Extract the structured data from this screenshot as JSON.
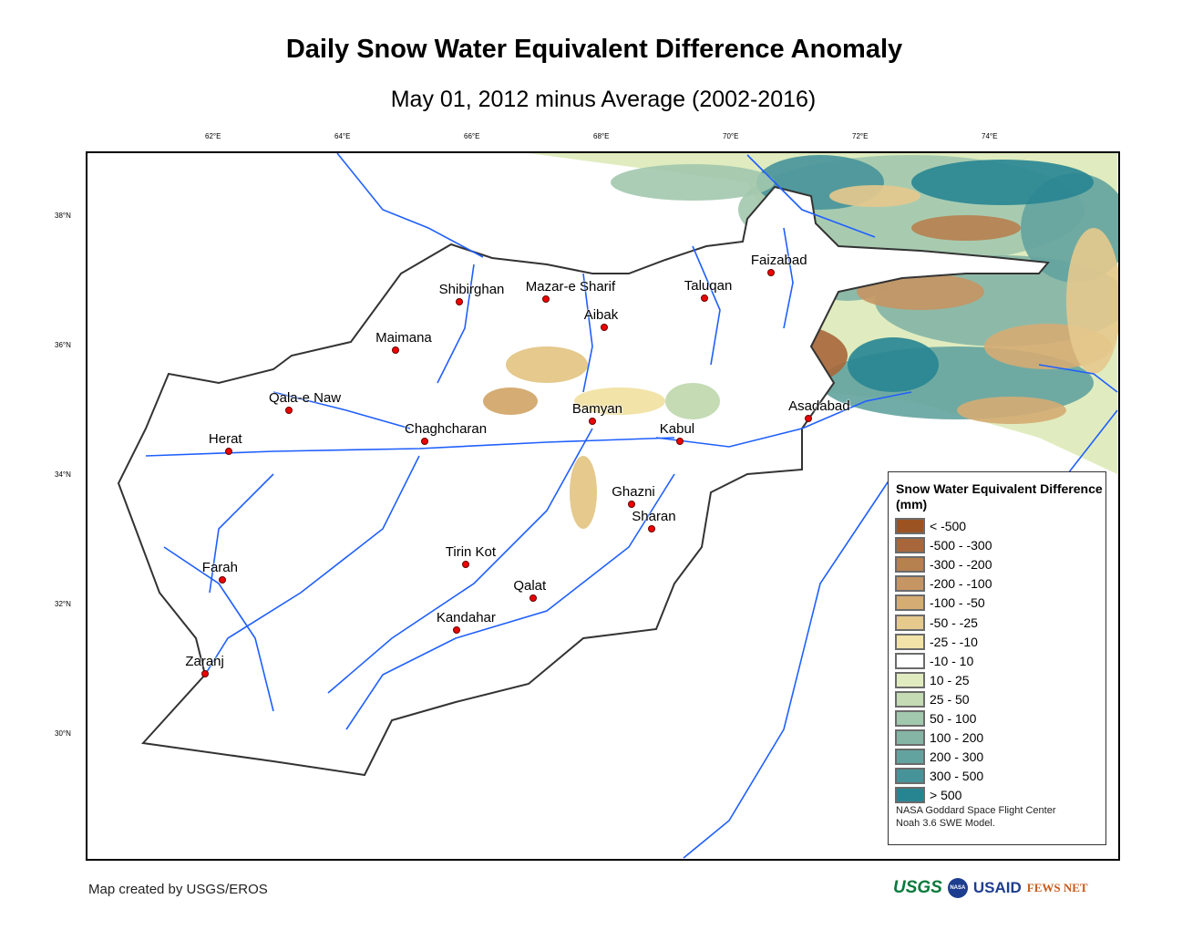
{
  "title": "Daily Snow Water Equivalent Difference Anomaly",
  "subtitle": "May 01, 2012 minus Average (2002-2016)",
  "map": {
    "lon_ticks": [
      "62°E",
      "64°E",
      "66°E",
      "68°E",
      "70°E",
      "72°E",
      "74°E"
    ],
    "lon_values": [
      62,
      64,
      66,
      68,
      70,
      72,
      74
    ],
    "lat_ticks": [
      "38°N",
      "36°N",
      "34°N",
      "32°N",
      "30°N"
    ],
    "lat_values": [
      38,
      36,
      34,
      32,
      30
    ],
    "cities": [
      {
        "name": "Faizabad",
        "lon": 70.59,
        "lat": 37.13
      },
      {
        "name": "Taluqan",
        "lon": 69.56,
        "lat": 36.73
      },
      {
        "name": "Shibirghan",
        "lon": 65.77,
        "lat": 36.68
      },
      {
        "name": "Mazar-e Sharif",
        "lon": 67.11,
        "lat": 36.72
      },
      {
        "name": "Aibak",
        "lon": 68.01,
        "lat": 36.28
      },
      {
        "name": "Maimana",
        "lon": 64.79,
        "lat": 35.93
      },
      {
        "name": "Qala-e Naw",
        "lon": 63.14,
        "lat": 35.0
      },
      {
        "name": "Herat",
        "lon": 62.21,
        "lat": 34.37
      },
      {
        "name": "Chaghcharan",
        "lon": 65.24,
        "lat": 34.52
      },
      {
        "name": "Bamyan",
        "lon": 67.83,
        "lat": 34.83
      },
      {
        "name": "Kabul",
        "lon": 69.18,
        "lat": 34.52
      },
      {
        "name": "Asadabad",
        "lon": 71.17,
        "lat": 34.87
      },
      {
        "name": "Ghazni",
        "lon": 68.44,
        "lat": 33.55
      },
      {
        "name": "Sharan",
        "lon": 68.75,
        "lat": 33.17
      },
      {
        "name": "Tirin Kot",
        "lon": 65.87,
        "lat": 32.62
      },
      {
        "name": "Farah",
        "lon": 62.11,
        "lat": 32.38
      },
      {
        "name": "Qalat",
        "lon": 66.92,
        "lat": 32.1
      },
      {
        "name": "Kandahar",
        "lon": 65.73,
        "lat": 31.61
      },
      {
        "name": "Zaranj",
        "lon": 61.85,
        "lat": 30.93
      }
    ]
  },
  "legend": {
    "title": "Snow Water Equivalent Difference (mm)",
    "items": [
      {
        "label": "< -500",
        "color": "#9c5323"
      },
      {
        "label": "-500 - -300",
        "color": "#a8673a"
      },
      {
        "label": "-300 - -200",
        "color": "#b7804f"
      },
      {
        "label": "-200 - -100",
        "color": "#c59563"
      },
      {
        "label": "-100 - -50",
        "color": "#d5ac73"
      },
      {
        "label": "-50 - -25",
        "color": "#e5c98d"
      },
      {
        "label": "-25 - -10",
        "color": "#f2e3a8"
      },
      {
        "label": "-10 - 10",
        "color": "#ffffff"
      },
      {
        "label": "10 - 25",
        "color": "#e0ecbf"
      },
      {
        "label": "25 - 50",
        "color": "#c4dbb4"
      },
      {
        "label": "50 - 100",
        "color": "#a2c8ae"
      },
      {
        "label": "100 - 200",
        "color": "#84b5a5"
      },
      {
        "label": "200 - 300",
        "color": "#63a39f"
      },
      {
        "label": "300 - 500",
        "color": "#47939a"
      },
      {
        "label": "> 500",
        "color": "#278592"
      }
    ],
    "credit_line1": "NASA Goddard Space Flight Center",
    "credit_line2": "Noah 3.6 SWE Model."
  },
  "footer": {
    "made_by": "Map created by USGS/EROS",
    "logos": [
      "USGS",
      "NASA",
      "USAID",
      "FEWS NET"
    ]
  },
  "colors": {
    "river": "#1f5fff",
    "border": "#333333",
    "city": "#e00000"
  }
}
